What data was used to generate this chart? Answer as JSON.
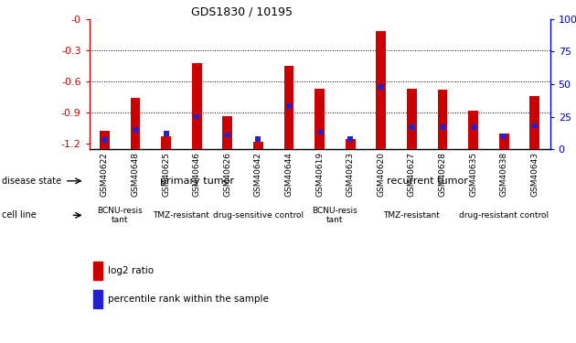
{
  "title": "GDS1830 / 10195",
  "samples": [
    "GSM40622",
    "GSM40648",
    "GSM40625",
    "GSM40646",
    "GSM40626",
    "GSM40642",
    "GSM40644",
    "GSM40619",
    "GSM40623",
    "GSM40620",
    "GSM40627",
    "GSM40628",
    "GSM40635",
    "GSM40638",
    "GSM40643"
  ],
  "log2_ratio": [
    -1.07,
    -0.76,
    -1.13,
    -0.42,
    -0.93,
    -1.18,
    -0.45,
    -0.67,
    -1.15,
    -0.12,
    -0.67,
    -0.68,
    -0.88,
    -1.1,
    -0.74
  ],
  "percentile": [
    7,
    15,
    12,
    25,
    11,
    8,
    33,
    13,
    8,
    48,
    17,
    17,
    17,
    10,
    18
  ],
  "bar_color_red": "#cc0000",
  "bar_color_blue": "#2222cc",
  "disease_state_primary_color": "#99ee99",
  "disease_state_recurrent_color": "#55cc55",
  "cell_line_bcnu_color": "#ffffff",
  "cell_line_tmz_color": "#ee88ee",
  "cell_line_drug_sensitive_color": "#dd66dd",
  "cell_line_drug_resistant_color": "#dd66dd",
  "tick_label_color_left": "#cc0000",
  "tick_label_color_right": "#0000cc",
  "primary_count": 7,
  "recurrent_count": 8,
  "bcnu_primary_count": 2,
  "tmz_primary_count": 2,
  "drug_primary_count": 3,
  "bcnu_recurrent_count": 2,
  "tmz_recurrent_count": 3,
  "drug_recurrent_count": 3
}
